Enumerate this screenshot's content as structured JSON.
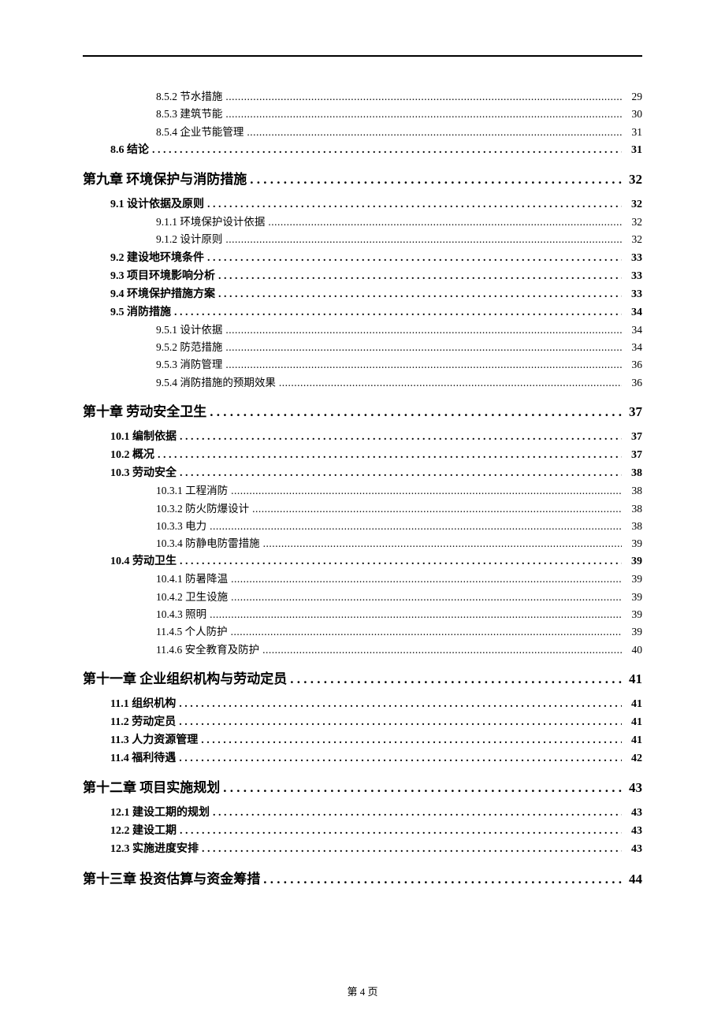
{
  "text_color": "#000000",
  "background_color": "#ffffff",
  "rule_color": "#000000",
  "font_family_body": "SimSun",
  "font_family_chapter": "KaiTi",
  "font_size_chapter_pt": 13,
  "font_size_section_pt": 10.5,
  "font_size_subsection_pt": 10,
  "page_footer": "第 4 页",
  "toc": [
    {
      "level": 2,
      "label": "8.5.2 节水措施",
      "page": "29"
    },
    {
      "level": 2,
      "label": "8.5.3 建筑节能",
      "page": "30"
    },
    {
      "level": 2,
      "label": "8.5.4 企业节能管理",
      "page": "31"
    },
    {
      "level": 1,
      "label": "8.6 结论",
      "page": "31"
    },
    {
      "level": 0,
      "label": "第九章  环境保护与消防措施",
      "page": "32"
    },
    {
      "level": 1,
      "label": "9.1 设计依据及原则",
      "page": "32"
    },
    {
      "level": 2,
      "label": "9.1.1 环境保护设计依据",
      "page": "32"
    },
    {
      "level": 2,
      "label": "9.1.2 设计原则",
      "page": "32"
    },
    {
      "level": 1,
      "label": "9.2 建设地环境条件",
      "page": "33"
    },
    {
      "level": 1,
      "label": "9.3 项目环境影响分析",
      "page": "33"
    },
    {
      "level": 1,
      "label": "9.4 环境保护措施方案",
      "page": "33"
    },
    {
      "level": 1,
      "label": "9.5 消防措施",
      "page": "34"
    },
    {
      "level": 2,
      "label": "9.5.1 设计依据",
      "page": "34"
    },
    {
      "level": 2,
      "label": "9.5.2 防范措施",
      "page": "34"
    },
    {
      "level": 2,
      "label": "9.5.3 消防管理",
      "page": "36"
    },
    {
      "level": 2,
      "label": "9.5.4 消防措施的预期效果",
      "page": "36"
    },
    {
      "level": 0,
      "label": "第十章  劳动安全卫生",
      "page": "37"
    },
    {
      "level": 1,
      "label": "10.1  编制依据",
      "page": "37"
    },
    {
      "level": 1,
      "label": "10.2 概况",
      "page": "37"
    },
    {
      "level": 1,
      "label": "10.3 劳动安全",
      "page": "38"
    },
    {
      "level": 2,
      "label": "10.3.1 工程消防",
      "page": "38"
    },
    {
      "level": 2,
      "label": "10.3.2 防火防爆设计",
      "page": "38"
    },
    {
      "level": 2,
      "label": "10.3.3 电力",
      "page": "38"
    },
    {
      "level": 2,
      "label": "10.3.4 防静电防雷措施",
      "page": "39"
    },
    {
      "level": 1,
      "label": "10.4 劳动卫生",
      "page": "39"
    },
    {
      "level": 2,
      "label": "10.4.1 防暑降温",
      "page": "39"
    },
    {
      "level": 2,
      "label": "10.4.2 卫生设施",
      "page": "39"
    },
    {
      "level": 2,
      "label": "10.4.3 照明",
      "page": "39"
    },
    {
      "level": 2,
      "label": "11.4.5 个人防护",
      "page": "39"
    },
    {
      "level": 2,
      "label": "11.4.6 安全教育及防护",
      "page": "40"
    },
    {
      "level": 0,
      "label": "第十一章  企业组织机构与劳动定员",
      "page": "41"
    },
    {
      "level": 1,
      "label": "11.1 组织机构",
      "page": "41"
    },
    {
      "level": 1,
      "label": "11.2 劳动定员",
      "page": "41"
    },
    {
      "level": 1,
      "label": "11.3 人力资源管理",
      "page": "41"
    },
    {
      "level": 1,
      "label": "11.4 福利待遇",
      "page": "42"
    },
    {
      "level": 0,
      "label": "第十二章  项目实施规划",
      "page": "43"
    },
    {
      "level": 1,
      "label": "12.1 建设工期的规划",
      "page": "43"
    },
    {
      "level": 1,
      "label": "12.2 建设工期",
      "page": "43"
    },
    {
      "level": 1,
      "label": "12.3 实施进度安排",
      "page": "43"
    },
    {
      "level": 0,
      "label": "第十三章  投资估算与资金筹措",
      "page": "44"
    }
  ]
}
